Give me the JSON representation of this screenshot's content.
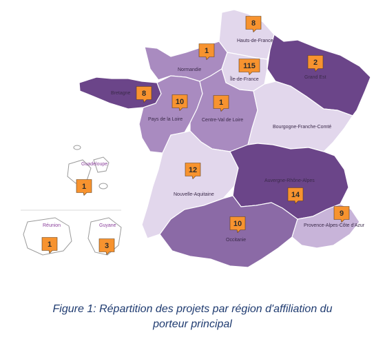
{
  "colors": {
    "level_5": "#6b4589",
    "level_4": "#8b6aa6",
    "level_3": "#a98bc0",
    "level_2": "#c8b4d9",
    "level_1": "#e2d7ec",
    "border": "#ffffff",
    "badge_fill": "#f7932f",
    "badge_stroke": "#5a3b1a",
    "overseas_outline": "#9a9a9a"
  },
  "regions": [
    {
      "id": "hauts-de-france",
      "name": "Hauts-de-France",
      "count": "8"
    },
    {
      "id": "normandie",
      "name": "Normandie",
      "count": "1"
    },
    {
      "id": "ile-de-france",
      "name": "Île-de-France",
      "count": "115"
    },
    {
      "id": "grand-est",
      "name": "Grand Est",
      "count": "2"
    },
    {
      "id": "bretagne",
      "name": "Bretagne",
      "count": "8"
    },
    {
      "id": "pays-de-la-loire",
      "name": "Pays de la Loire",
      "count": "10"
    },
    {
      "id": "centre-val-de-loire",
      "name": "Centre-Val de Loire",
      "count": "1"
    },
    {
      "id": "bourgogne-franche-comte",
      "name": "Bourgogne-Franche-Comté",
      "count": ""
    },
    {
      "id": "nouvelle-aquitaine",
      "name": "Nouvelle-Aquitaine",
      "count": "12"
    },
    {
      "id": "auvergne-rhone-alpes",
      "name": "Auvergne-Rhône-Alpes",
      "count": "14"
    },
    {
      "id": "occitanie",
      "name": "Occitanie",
      "count": "10"
    },
    {
      "id": "paca",
      "name": "Provence-Alpes-Côte d'Azur",
      "count": "9"
    }
  ],
  "overseas": [
    {
      "id": "guadeloupe",
      "name": "Guadeloupe",
      "count": "1"
    },
    {
      "id": "reunion",
      "name": "Réunion",
      "count": "1"
    },
    {
      "id": "guyane",
      "name": "Guyane",
      "count": "3"
    }
  ],
  "caption": {
    "line1": "Figure 1: Répartition des projets par région d'affiliation du",
    "line2": "porteur principal"
  }
}
